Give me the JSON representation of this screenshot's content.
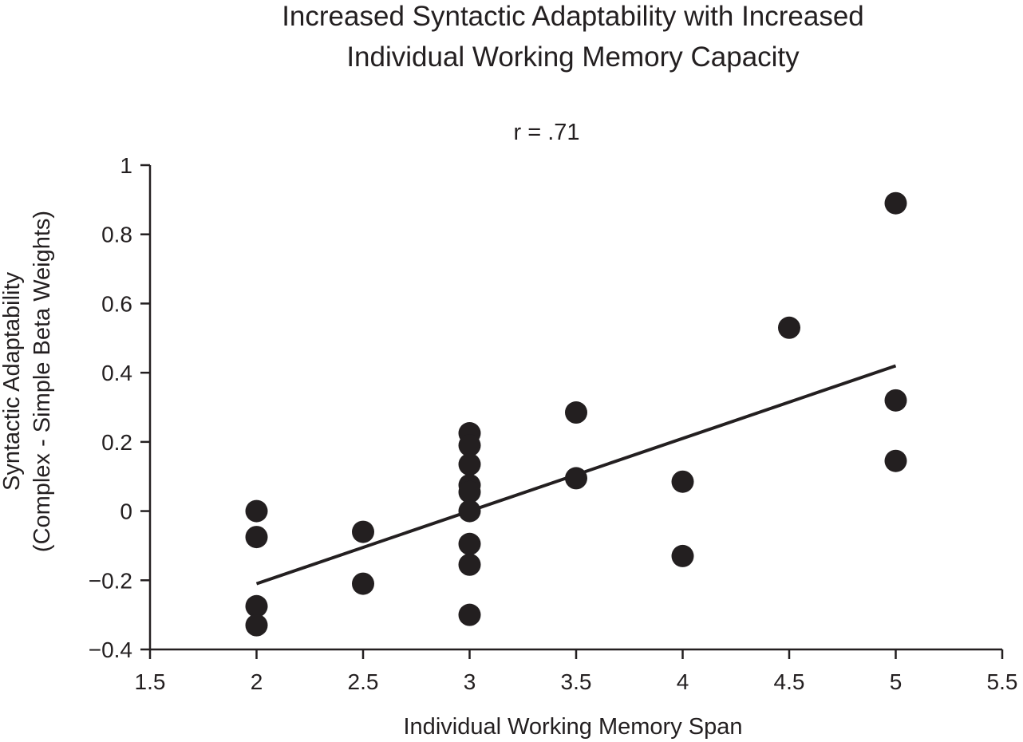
{
  "chart_data": {
    "type": "scatter",
    "title_lines": [
      "Increased Syntactic Adaptability with Increased",
      "Individual Working Memory Capacity"
    ],
    "subtitle": "r = .71",
    "xlabel": "Individual Working Memory Span",
    "ylabel_lines": [
      "Syntactic Adaptability",
      "(Complex - Simple Beta Weights)"
    ],
    "xlim": [
      1.5,
      5.5
    ],
    "ylim": [
      -0.4,
      1.0
    ],
    "x_ticks": [
      1.5,
      2,
      2.5,
      3,
      3.5,
      4,
      4.5,
      5,
      5.5
    ],
    "x_tick_labels": [
      "1.5",
      "2",
      "2.5",
      "3",
      "3.5",
      "4",
      "4.5",
      "5",
      "5.5"
    ],
    "y_ticks": [
      -0.4,
      -0.2,
      0,
      0.2,
      0.4,
      0.6,
      0.8,
      1
    ],
    "y_tick_labels": [
      "−0.4",
      "−0.2",
      "0",
      "0.2",
      "0.4",
      "0.6",
      "0.8",
      "1"
    ],
    "grid": false,
    "points": [
      {
        "x": 2,
        "y": 0.0
      },
      {
        "x": 2,
        "y": -0.075
      },
      {
        "x": 2,
        "y": -0.275
      },
      {
        "x": 2,
        "y": -0.33
      },
      {
        "x": 2.5,
        "y": -0.06
      },
      {
        "x": 2.5,
        "y": -0.21
      },
      {
        "x": 3,
        "y": 0.225
      },
      {
        "x": 3,
        "y": 0.19
      },
      {
        "x": 3,
        "y": 0.135
      },
      {
        "x": 3,
        "y": 0.075
      },
      {
        "x": 3,
        "y": 0.055
      },
      {
        "x": 3,
        "y": 0.0
      },
      {
        "x": 3,
        "y": -0.095
      },
      {
        "x": 3,
        "y": -0.155
      },
      {
        "x": 3,
        "y": -0.3
      },
      {
        "x": 3.5,
        "y": 0.285
      },
      {
        "x": 3.5,
        "y": 0.095
      },
      {
        "x": 4,
        "y": 0.085
      },
      {
        "x": 4,
        "y": -0.13
      },
      {
        "x": 4.5,
        "y": 0.53
      },
      {
        "x": 5,
        "y": 0.89
      },
      {
        "x": 5,
        "y": 0.32
      },
      {
        "x": 5,
        "y": 0.145
      }
    ],
    "trend_line": {
      "x": [
        2,
        5
      ],
      "y": [
        -0.21,
        0.42
      ]
    },
    "colors": {
      "ink": "#231f20"
    }
  }
}
